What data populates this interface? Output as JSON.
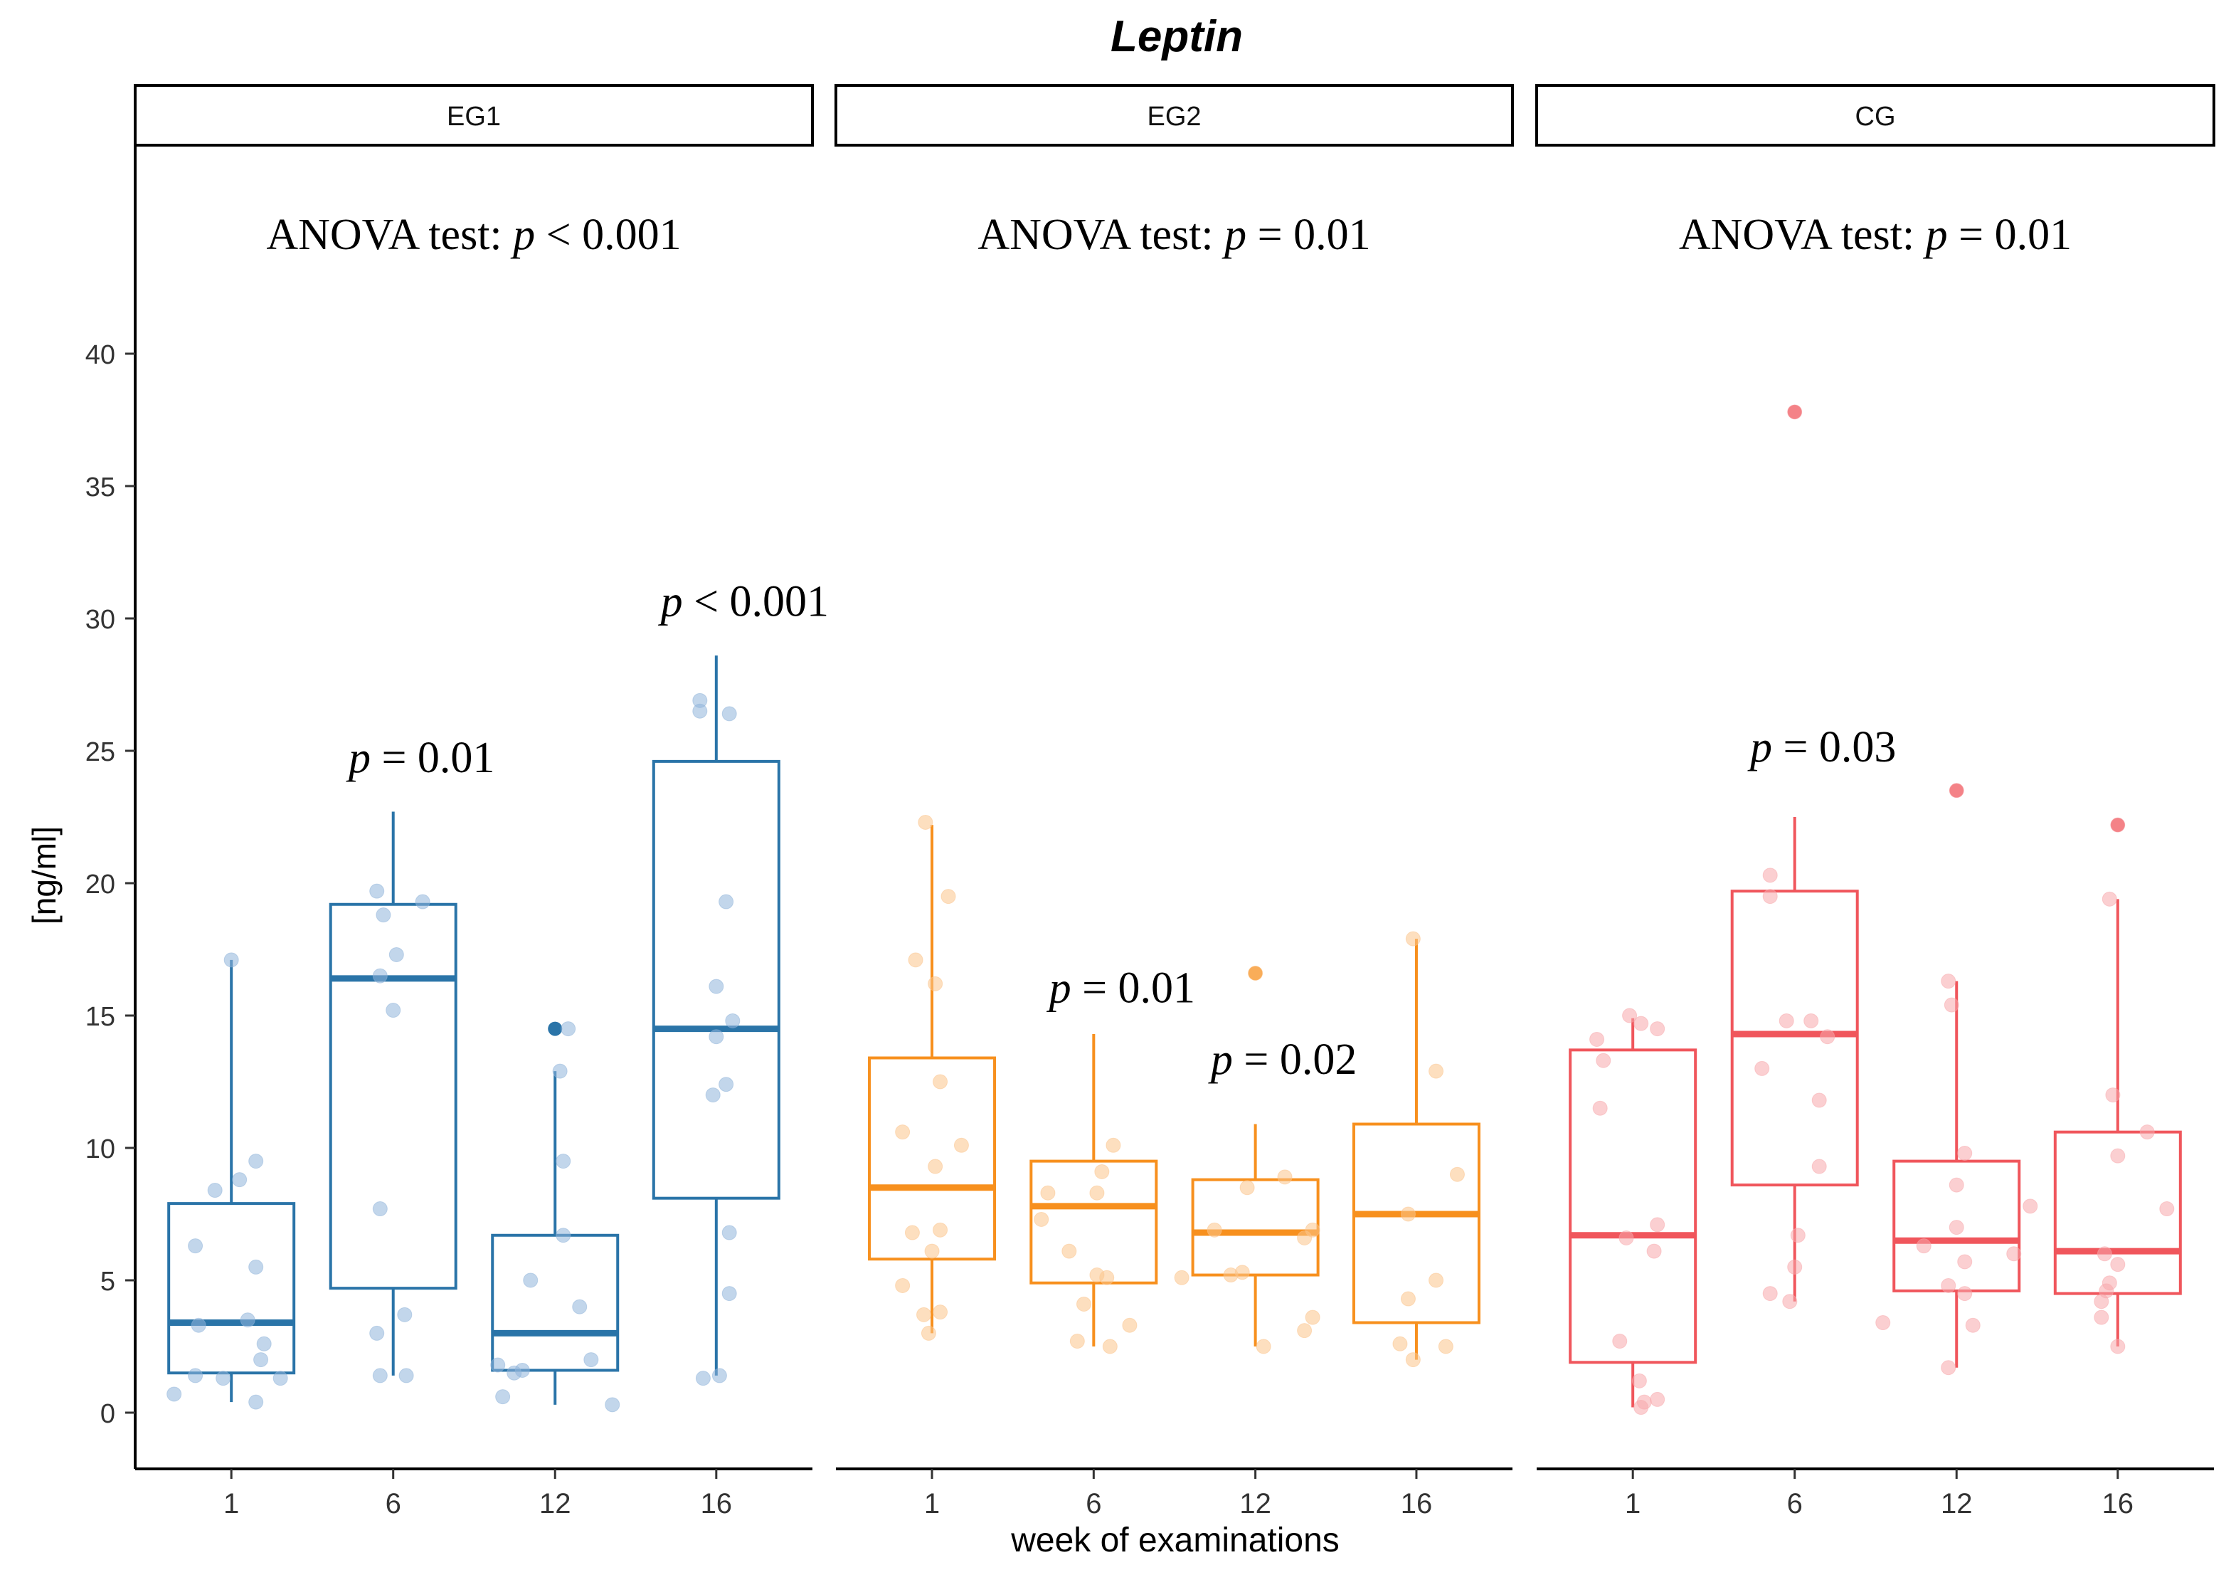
{
  "chart_data": {
    "type": "box",
    "title": "Leptin",
    "xlabel": "week of examinations",
    "ylabel": "[ng/ml]",
    "ylim": [
      -2,
      46
    ],
    "yticks": [
      0,
      5,
      10,
      15,
      20,
      25,
      30,
      35,
      40
    ],
    "categories": [
      "1",
      "6",
      "12",
      "16"
    ],
    "panels": [
      {
        "name": "EG1",
        "color": "#2A74A8",
        "point_color": "#8FB4DA",
        "anova": {
          "prefix": "ANOVA test: ",
          "p": "p",
          "rest": " < 0.001"
        },
        "groups": [
          {
            "week": "1",
            "q1": 1.5,
            "median": 3.4,
            "q3": 7.9,
            "whisker_low": 0.4,
            "whisker_high": 17.1,
            "outliers": [],
            "points": [
              [
                -0.35,
                0.7
              ],
              [
                -0.22,
                1.4
              ],
              [
                -0.05,
                1.3
              ],
              [
                0.15,
                0.4
              ],
              [
                0.3,
                1.3
              ],
              [
                0.18,
                2.0
              ],
              [
                0.2,
                2.6
              ],
              [
                0.1,
                3.5
              ],
              [
                -0.2,
                3.3
              ],
              [
                0.15,
                5.5
              ],
              [
                -0.22,
                6.3
              ],
              [
                -0.1,
                8.4
              ],
              [
                0.05,
                8.8
              ],
              [
                0.15,
                9.5
              ],
              [
                0.0,
                17.1
              ]
            ]
          },
          {
            "week": "6",
            "q1": 4.7,
            "median": 16.4,
            "q3": 19.2,
            "whisker_low": 1.4,
            "whisker_high": 22.7,
            "outliers": [],
            "points": [
              [
                -0.08,
                1.4
              ],
              [
                0.08,
                1.4
              ],
              [
                -0.1,
                3.0
              ],
              [
                0.07,
                3.7
              ],
              [
                -0.08,
                7.7
              ],
              [
                0.0,
                15.2
              ],
              [
                -0.08,
                16.5
              ],
              [
                0.02,
                17.3
              ],
              [
                -0.06,
                18.8
              ],
              [
                0.18,
                19.3
              ],
              [
                -0.1,
                19.7
              ]
            ]
          },
          {
            "week": "12",
            "q1": 1.6,
            "median": 3.0,
            "q3": 6.7,
            "whisker_low": 0.3,
            "whisker_high": 12.9,
            "outliers": [
              14.5
            ],
            "points": [
              [
                -0.32,
                0.6
              ],
              [
                -0.35,
                1.8
              ],
              [
                -0.25,
                1.5
              ],
              [
                -0.2,
                1.6
              ],
              [
                0.35,
                0.3
              ],
              [
                0.22,
                2.0
              ],
              [
                -0.15,
                5.0
              ],
              [
                0.15,
                4.0
              ],
              [
                0.05,
                6.7
              ],
              [
                0.05,
                9.5
              ],
              [
                0.03,
                12.9
              ],
              [
                0.08,
                14.5
              ]
            ]
          },
          {
            "week": "16",
            "q1": 8.1,
            "median": 14.5,
            "q3": 24.6,
            "whisker_low": 1.4,
            "whisker_high": 28.6,
            "outliers": [],
            "points": [
              [
                -0.08,
                1.3
              ],
              [
                0.02,
                1.4
              ],
              [
                0.08,
                4.5
              ],
              [
                0.08,
                6.8
              ],
              [
                -0.02,
                12.0
              ],
              [
                0.06,
                12.4
              ],
              [
                0.0,
                14.2
              ],
              [
                0.1,
                14.8
              ],
              [
                0.0,
                16.1
              ],
              [
                0.06,
                19.3
              ],
              [
                -0.1,
                26.5
              ],
              [
                0.08,
                26.4
              ],
              [
                -0.1,
                26.9
              ]
            ]
          }
        ],
        "pairwise": [
          {
            "week": "6",
            "y": 24.2,
            "p": "p",
            "rest": " = 0.01"
          },
          {
            "week": "16",
            "y": 30.1,
            "p": "p",
            "rest": " < 0.001"
          }
        ]
      },
      {
        "name": "EG2",
        "color": "#F7901E",
        "point_color": "#FBC48B",
        "anova": {
          "prefix": "ANOVA test: ",
          "p": "p",
          "rest": " = 0.01"
        },
        "groups": [
          {
            "week": "1",
            "q1": 5.8,
            "median": 8.5,
            "q3": 13.4,
            "whisker_low": 3.0,
            "whisker_high": 22.2,
            "outliers": [],
            "points": [
              [
                -0.02,
                3.0
              ],
              [
                -0.05,
                3.7
              ],
              [
                0.05,
                3.8
              ],
              [
                -0.18,
                4.8
              ],
              [
                -0.12,
                6.8
              ],
              [
                0.05,
                6.9
              ],
              [
                0.0,
                6.1
              ],
              [
                0.02,
                9.3
              ],
              [
                0.18,
                10.1
              ],
              [
                -0.18,
                10.6
              ],
              [
                0.05,
                12.5
              ],
              [
                0.02,
                16.2
              ],
              [
                -0.1,
                17.1
              ],
              [
                0.1,
                19.5
              ],
              [
                -0.04,
                22.3
              ]
            ]
          },
          {
            "week": "6",
            "q1": 4.9,
            "median": 7.8,
            "q3": 9.5,
            "whisker_low": 2.5,
            "whisker_high": 14.3,
            "outliers": [],
            "points": [
              [
                -0.1,
                2.7
              ],
              [
                0.1,
                2.5
              ],
              [
                0.22,
                3.3
              ],
              [
                -0.06,
                4.1
              ],
              [
                0.02,
                5.2
              ],
              [
                0.08,
                5.1
              ],
              [
                -0.15,
                6.1
              ],
              [
                -0.32,
                7.3
              ],
              [
                -0.28,
                8.3
              ],
              [
                0.02,
                8.3
              ],
              [
                0.05,
                9.1
              ],
              [
                0.12,
                10.1
              ]
            ]
          },
          {
            "week": "12",
            "q1": 5.2,
            "median": 6.8,
            "q3": 8.8,
            "whisker_low": 2.5,
            "whisker_high": 10.9,
            "outliers": [
              16.6
            ],
            "points": [
              [
                -0.45,
                5.1
              ],
              [
                -0.15,
                5.2
              ],
              [
                -0.08,
                5.3
              ],
              [
                0.05,
                2.5
              ],
              [
                0.3,
                3.1
              ],
              [
                0.35,
                3.6
              ],
              [
                -0.25,
                6.9
              ],
              [
                0.3,
                6.6
              ],
              [
                0.35,
                6.9
              ],
              [
                -0.05,
                8.5
              ],
              [
                0.18,
                8.9
              ],
              [
                0.0,
                16.6
              ]
            ]
          },
          {
            "week": "16",
            "q1": 3.4,
            "median": 7.5,
            "q3": 10.9,
            "whisker_low": 2.0,
            "whisker_high": 17.9,
            "outliers": [],
            "points": [
              [
                -0.02,
                2.0
              ],
              [
                0.18,
                2.5
              ],
              [
                -0.1,
                2.6
              ],
              [
                -0.05,
                4.3
              ],
              [
                0.12,
                5.0
              ],
              [
                -0.05,
                7.5
              ],
              [
                0.25,
                9.0
              ],
              [
                0.12,
                12.9
              ],
              [
                -0.02,
                17.9
              ]
            ]
          }
        ],
        "pairwise": [
          {
            "week": "6",
            "y": 15.5,
            "p": "p",
            "rest": " = 0.01"
          },
          {
            "week": "12",
            "y": 12.8,
            "p": "p",
            "rest": " = 0.02"
          }
        ]
      },
      {
        "name": "CG",
        "color": "#F0565C",
        "point_color": "#F8A7AB",
        "anova": {
          "prefix": "ANOVA test: ",
          "p": "p",
          "rest": " = 0.01"
        },
        "groups": [
          {
            "week": "1",
            "q1": 1.9,
            "median": 6.7,
            "q3": 13.7,
            "whisker_low": 0.2,
            "whisker_high": 14.9,
            "outliers": [],
            "points": [
              [
                0.05,
                0.2
              ],
              [
                0.07,
                0.4
              ],
              [
                0.15,
                0.5
              ],
              [
                0.04,
                1.2
              ],
              [
                -0.08,
                2.7
              ],
              [
                0.13,
                6.1
              ],
              [
                -0.04,
                6.6
              ],
              [
                0.15,
                7.1
              ],
              [
                -0.2,
                11.5
              ],
              [
                -0.18,
                13.3
              ],
              [
                -0.22,
                14.1
              ],
              [
                0.05,
                14.7
              ],
              [
                -0.02,
                15.0
              ],
              [
                0.15,
                14.5
              ]
            ]
          },
          {
            "week": "6",
            "q1": 8.6,
            "median": 14.3,
            "q3": 19.7,
            "whisker_low": 4.2,
            "whisker_high": 22.5,
            "outliers": [
              37.8
            ],
            "points": [
              [
                -0.15,
                4.5
              ],
              [
                -0.03,
                4.2
              ],
              [
                0.0,
                5.5
              ],
              [
                0.02,
                6.7
              ],
              [
                0.15,
                9.3
              ],
              [
                -0.2,
                13.0
              ],
              [
                0.15,
                11.8
              ],
              [
                0.2,
                14.2
              ],
              [
                -0.05,
                14.8
              ],
              [
                0.1,
                14.8
              ],
              [
                -0.15,
                19.5
              ],
              [
                -0.15,
                20.3
              ],
              [
                0.0,
                37.8
              ]
            ]
          },
          {
            "week": "12",
            "q1": 4.6,
            "median": 6.5,
            "q3": 9.5,
            "whisker_low": 1.7,
            "whisker_high": 16.3,
            "outliers": [
              23.5
            ],
            "points": [
              [
                -0.05,
                1.7
              ],
              [
                -0.45,
                3.4
              ],
              [
                0.1,
                3.3
              ],
              [
                -0.05,
                4.8
              ],
              [
                0.05,
                4.5
              ],
              [
                0.05,
                5.7
              ],
              [
                -0.2,
                6.3
              ],
              [
                0.0,
                7.0
              ],
              [
                0.35,
                6.0
              ],
              [
                0.45,
                7.8
              ],
              [
                0.0,
                8.6
              ],
              [
                0.05,
                9.8
              ],
              [
                -0.03,
                15.4
              ],
              [
                -0.05,
                16.3
              ],
              [
                0.0,
                23.5
              ]
            ]
          },
          {
            "week": "16",
            "q1": 4.5,
            "median": 6.1,
            "q3": 10.6,
            "whisker_low": 2.5,
            "whisker_high": 19.4,
            "outliers": [
              22.2
            ],
            "points": [
              [
                0.0,
                2.5
              ],
              [
                -0.1,
                3.6
              ],
              [
                -0.1,
                4.2
              ],
              [
                -0.07,
                4.6
              ],
              [
                -0.05,
                4.9
              ],
              [
                0.0,
                5.6
              ],
              [
                -0.08,
                6.0
              ],
              [
                0.3,
                7.7
              ],
              [
                0.18,
                10.6
              ],
              [
                0.0,
                9.7
              ],
              [
                -0.03,
                12.0
              ],
              [
                -0.05,
                19.4
              ],
              [
                0.0,
                22.2
              ]
            ]
          }
        ],
        "pairwise": [
          {
            "week": "6",
            "y": 24.6,
            "p": "p",
            "rest": " = 0.03"
          }
        ]
      }
    ]
  }
}
